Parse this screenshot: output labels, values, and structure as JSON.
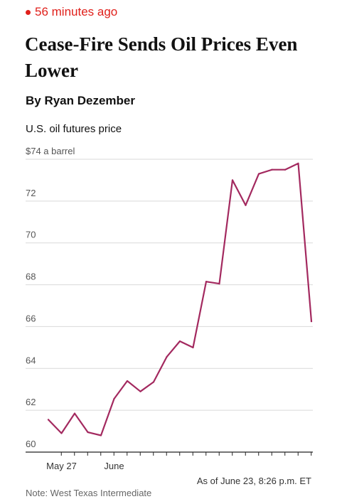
{
  "article": {
    "timestamp": "56 minutes ago",
    "headline": "Cease-Fire Sends Oil Prices Even Lower",
    "byline": "By Ryan Dezember"
  },
  "colors": {
    "timestamp": "#e0201b",
    "line": "#a3295f",
    "grid": "#d9d9d9",
    "axis": "#222222"
  },
  "chart_data": {
    "type": "line",
    "title": "U.S. oil futures price",
    "unit_label": "$74 a barrel",
    "ylim": [
      60,
      74
    ],
    "y_ticks": [
      60,
      62,
      64,
      66,
      68,
      70,
      72,
      74
    ],
    "y_tick_labels": [
      "60",
      "62",
      "64",
      "66",
      "68",
      "70",
      "72",
      "$74 a barrel"
    ],
    "x_labels": [
      {
        "label": "May 27",
        "index": 1
      },
      {
        "label": "June",
        "index": 5
      }
    ],
    "grid": true,
    "series": [
      {
        "values": [
          61.55,
          60.9,
          61.85,
          60.95,
          60.8,
          62.55,
          63.4,
          62.9,
          63.35,
          64.55,
          65.3,
          65.0,
          68.15,
          68.05,
          73.0,
          71.8,
          73.3,
          73.5,
          73.5,
          73.8,
          66.25
        ]
      }
    ],
    "annotation": "As of June 23, 8:26 p.m. ET"
  },
  "note": "Note: West Texas Intermediate"
}
